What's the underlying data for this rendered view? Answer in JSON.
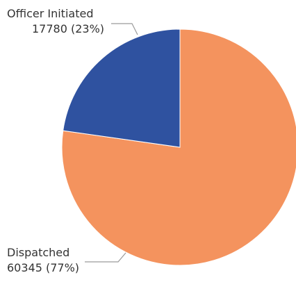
{
  "chart_data": {
    "type": "pie",
    "title": "",
    "slices": [
      {
        "name": "Dispatched",
        "value": 60345,
        "value_label": "60345 (77%)",
        "color": "#f4935e"
      },
      {
        "name": "Officer Initiated",
        "value": 17780,
        "value_label": "17780 (23%)",
        "color": "#2f52a0"
      }
    ],
    "legend": "none",
    "start_angle": "12 o'clock",
    "direction": "clockwise"
  }
}
